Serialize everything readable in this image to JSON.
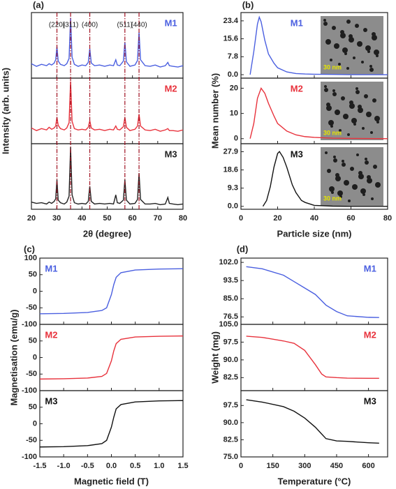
{
  "chart_data": [
    {
      "type": "line",
      "panel_label": "(a)",
      "xlabel": "2θ (degree)",
      "ylabel": "Intensity (arb. units)",
      "xlim": [
        20,
        80
      ],
      "xticks": [
        20,
        30,
        40,
        50,
        60,
        70,
        80
      ],
      "reference_lines": [
        {
          "value": 30.1,
          "label": "(220)"
        },
        {
          "value": 35.5,
          "label": "(311)"
        },
        {
          "value": 43.1,
          "label": "(400)"
        },
        {
          "value": 57.0,
          "label": "(511)"
        },
        {
          "value": 62.6,
          "label": "(440)"
        }
      ],
      "subplots": [
        {
          "name": "M1",
          "color": "#4a5fe0",
          "ylim": [
            0,
            100
          ],
          "x": [
            20,
            22,
            24,
            26,
            27,
            28,
            29,
            29.6,
            30.1,
            30.6,
            31.5,
            33,
            34,
            34.9,
            35.5,
            36.1,
            37,
            38.5,
            40,
            41.5,
            42.5,
            43.1,
            43.7,
            45,
            47,
            49,
            51,
            52.5,
            53.4,
            54,
            55,
            56.4,
            57,
            57.6,
            59,
            61,
            62,
            62.6,
            63.2,
            65,
            67,
            69,
            71,
            73,
            74,
            74.6,
            76,
            78,
            80
          ],
          "values": [
            22,
            18,
            21,
            19,
            22,
            20,
            23,
            28,
            48,
            26,
            21,
            19,
            22,
            30,
            92,
            32,
            21,
            18,
            20,
            19,
            24,
            45,
            23,
            19,
            20,
            18,
            20,
            19,
            28,
            20,
            19,
            26,
            55,
            25,
            18,
            20,
            27,
            70,
            28,
            19,
            18,
            20,
            17,
            19,
            24,
            19,
            18,
            17,
            19
          ]
        },
        {
          "name": "M2",
          "color": "#e8323c",
          "ylim": [
            0,
            100
          ],
          "x": [
            20,
            22,
            24,
            26,
            27,
            28,
            29,
            29.6,
            30.1,
            30.6,
            31.5,
            33,
            34,
            34.9,
            35.5,
            36.1,
            37,
            38.5,
            40,
            41.5,
            42.5,
            43.1,
            43.7,
            45,
            47,
            49,
            51,
            52.5,
            53.4,
            54,
            55,
            56.4,
            57,
            57.6,
            59,
            61,
            62,
            62.6,
            63.2,
            65,
            67,
            69,
            71,
            73,
            74,
            74.6,
            76,
            78,
            80
          ],
          "values": [
            24,
            20,
            23,
            21,
            25,
            22,
            24,
            27,
            40,
            28,
            23,
            21,
            24,
            32,
            95,
            34,
            23,
            21,
            22,
            21,
            25,
            35,
            24,
            21,
            22,
            20,
            22,
            21,
            27,
            22,
            21,
            26,
            40,
            25,
            20,
            22,
            27,
            45,
            27,
            21,
            20,
            22,
            19,
            21,
            23,
            20,
            20,
            19,
            21
          ]
        },
        {
          "name": "M3",
          "color": "#222222",
          "ylim": [
            0,
            100
          ],
          "x": [
            20,
            22,
            24,
            26,
            27,
            28,
            29,
            29.6,
            30.1,
            30.6,
            31.5,
            33,
            34,
            34.9,
            35.5,
            36.1,
            37,
            38.5,
            40,
            41.5,
            42.5,
            43.1,
            43.7,
            45,
            47,
            49,
            51,
            52.5,
            53.4,
            54,
            55,
            56.4,
            57,
            57.6,
            59,
            61,
            62,
            62.6,
            63.2,
            65,
            67,
            69,
            71,
            73,
            74,
            74.6,
            76,
            78,
            80
          ],
          "values": [
            11,
            9,
            10,
            8,
            11,
            9,
            12,
            16,
            45,
            14,
            10,
            8,
            11,
            20,
            95,
            22,
            10,
            8,
            9,
            8,
            12,
            35,
            12,
            8,
            9,
            8,
            9,
            8,
            22,
            10,
            9,
            14,
            45,
            14,
            8,
            9,
            15,
            55,
            15,
            8,
            8,
            9,
            7,
            8,
            18,
            9,
            8,
            7,
            8
          ]
        }
      ]
    },
    {
      "type": "line",
      "panel_label": "(b)",
      "xlabel": "Particle size (nm)",
      "ylabel": "Mean number (%)",
      "xlim": [
        0,
        80
      ],
      "xticks": [
        0,
        20,
        40,
        60,
        80
      ],
      "inset_scale_label": "30 nm",
      "subplots": [
        {
          "name": "M1",
          "color": "#4a5fe0",
          "ylim": [
            -1.5,
            27
          ],
          "yticks": [
            {
              "value": 0,
              "label": "0.0"
            },
            7.8,
            15.6,
            23.4
          ],
          "x": [
            5,
            7,
            9,
            10,
            11,
            13,
            15,
            18,
            20,
            25,
            30,
            35,
            40,
            50,
            60,
            80
          ],
          "values": [
            0,
            10,
            22,
            25,
            23,
            15,
            9,
            5,
            3,
            1.2,
            0.5,
            0.3,
            0.2,
            0.1,
            0,
            0
          ]
        },
        {
          "name": "M2",
          "color": "#e8323c",
          "ylim": [
            -2,
            24
          ],
          "yticks": [
            0,
            10,
            20
          ],
          "x": [
            5,
            7,
            9,
            11,
            13,
            15,
            18,
            20,
            25,
            30,
            35,
            40,
            50,
            60,
            80
          ],
          "values": [
            0,
            6,
            16,
            20,
            18,
            14,
            9,
            6,
            3,
            1.5,
            0.8,
            0.5,
            0.2,
            0.1,
            0
          ]
        },
        {
          "name": "M3",
          "color": "#111111",
          "ylim": [
            -1.5,
            32
          ],
          "yticks": [
            {
              "value": 0,
              "label": "0.0"
            },
            9.3,
            18.6,
            27.9
          ],
          "x": [
            12,
            14,
            16,
            18,
            20,
            21,
            23,
            25,
            28,
            30,
            33,
            35,
            40,
            50,
            60,
            80
          ],
          "values": [
            0,
            3,
            10,
            20,
            27,
            28,
            25,
            20,
            11,
            7,
            3,
            2,
            0.5,
            0.1,
            0,
            0
          ]
        }
      ]
    },
    {
      "type": "line",
      "panel_label": "(c)",
      "xlabel": "Magnetic field (T)",
      "ylabel": "Magnetisation (emu/g)",
      "xlim": [
        -1.5,
        1.5
      ],
      "xticks": [
        -1.5,
        {
          "value": -1,
          "label": "-1.0"
        },
        -0.5,
        {
          "value": 0,
          "label": "0.0"
        },
        0.5,
        {
          "value": 1,
          "label": "1.0"
        },
        1.5
      ],
      "subplots": [
        {
          "name": "M1",
          "color": "#4a5fe0",
          "ylim": [
            -100,
            100
          ],
          "yticks": [
            -100,
            -50,
            0,
            50,
            100
          ],
          "x": [
            -1.5,
            -1,
            -0.5,
            -0.2,
            -0.1,
            0,
            0.05,
            0.1,
            0.2,
            0.5,
            1,
            1.5
          ],
          "values": [
            -68,
            -67,
            -64,
            -58,
            -50,
            -10,
            20,
            42,
            56,
            64,
            67,
            68
          ]
        },
        {
          "name": "M2",
          "color": "#e8323c",
          "ylim": [
            -100,
            100
          ],
          "yticks": [
            -100,
            -50,
            0,
            50
          ],
          "x": [
            -1.5,
            -1,
            -0.5,
            -0.2,
            -0.1,
            0,
            0.05,
            0.1,
            0.2,
            0.5,
            1,
            1.5
          ],
          "values": [
            -65,
            -64,
            -62,
            -57,
            -48,
            -10,
            20,
            42,
            55,
            62,
            64,
            65
          ]
        },
        {
          "name": "M3",
          "color": "#111111",
          "ylim": [
            -100,
            100
          ],
          "yticks": [
            -100,
            -50,
            0,
            50
          ],
          "x": [
            -1.5,
            -1,
            -0.5,
            -0.2,
            -0.1,
            0,
            0.05,
            0.1,
            0.2,
            0.5,
            1,
            1.5
          ],
          "values": [
            -70,
            -69,
            -66,
            -60,
            -50,
            -10,
            20,
            45,
            58,
            66,
            69,
            70
          ]
        }
      ]
    },
    {
      "type": "line",
      "panel_label": "(d)",
      "xlabel": "Temperature (°C)",
      "ylabel": "Weight (mg)",
      "xlim": [
        0,
        690
      ],
      "xticks": [
        0,
        150,
        300,
        450,
        600
      ],
      "subplots": [
        {
          "name": "M1",
          "color": "#4a5fe0",
          "ylim": [
            73,
            104
          ],
          "yticks": [
            76.5,
            {
              "value": 85,
              "label": "85.0"
            },
            93.5,
            {
              "value": 102,
              "label": "102.0"
            }
          ],
          "x": [
            25,
            100,
            200,
            250,
            300,
            350,
            380,
            400,
            450,
            500,
            600,
            650
          ],
          "values": [
            100,
            99,
            96,
            93,
            90,
            87,
            84,
            82,
            79,
            77,
            76.3,
            76.2
          ]
        },
        {
          "name": "M2",
          "color": "#e8323c",
          "ylim": [
            77,
            105
          ],
          "yticks": [
            82.5,
            {
              "value": 90,
              "label": "90.0"
            },
            97.5,
            {
              "value": 105,
              "label": "105.0"
            }
          ],
          "x": [
            25,
            100,
            200,
            250,
            300,
            350,
            380,
            400,
            450,
            500,
            600,
            650
          ],
          "values": [
            100,
            99.5,
            98,
            97,
            94,
            88,
            84,
            82.8,
            82.5,
            82.3,
            82.2,
            82.2
          ]
        },
        {
          "name": "M3",
          "color": "#111111",
          "ylim": [
            75,
            104
          ],
          "yticks": [
            {
              "value": 75,
              "label": "75.0"
            },
            82.5,
            {
              "value": 90,
              "label": "90.0"
            },
            97.5
          ],
          "x": [
            25,
            100,
            200,
            250,
            300,
            350,
            380,
            400,
            450,
            500,
            600,
            650
          ],
          "values": [
            100,
            99,
            97,
            95,
            92,
            88,
            85,
            83,
            82,
            81.8,
            81.2,
            81
          ]
        }
      ]
    }
  ]
}
